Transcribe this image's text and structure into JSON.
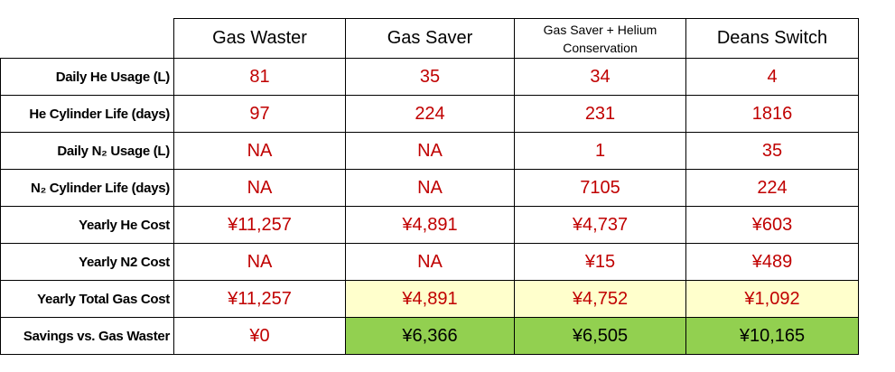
{
  "table": {
    "columns": [
      "Gas Waster",
      "Gas Saver",
      "Gas Saver + Helium Conservation",
      "Deans Switch"
    ],
    "rows": [
      {
        "label": "Daily He Usage (L)",
        "cells": [
          "81",
          "35",
          "34",
          "4"
        ]
      },
      {
        "label": "He Cylinder Life (days)",
        "cells": [
          "97",
          "224",
          "231",
          "1816"
        ]
      },
      {
        "label": "Daily N₂ Usage (L)",
        "cells": [
          "NA",
          "NA",
          "1",
          "35"
        ]
      },
      {
        "label": "N₂ Cylinder Life (days)",
        "cells": [
          "NA",
          "NA",
          "7105",
          "224"
        ]
      },
      {
        "label": "Yearly He Cost",
        "cells": [
          "¥11,257",
          "¥4,891",
          "¥4,737",
          "¥603"
        ]
      },
      {
        "label": "Yearly N2 Cost",
        "cells": [
          "NA",
          "NA",
          "¥15",
          "¥489"
        ]
      },
      {
        "label": "Yearly Total Gas Cost",
        "cells": [
          "¥11,257",
          "¥4,891",
          "¥4,752",
          "¥1,092"
        ]
      },
      {
        "label": "Savings vs. Gas Waster",
        "cells": [
          "¥0",
          "¥6,366",
          "¥6,505",
          "¥10,165"
        ]
      }
    ]
  }
}
